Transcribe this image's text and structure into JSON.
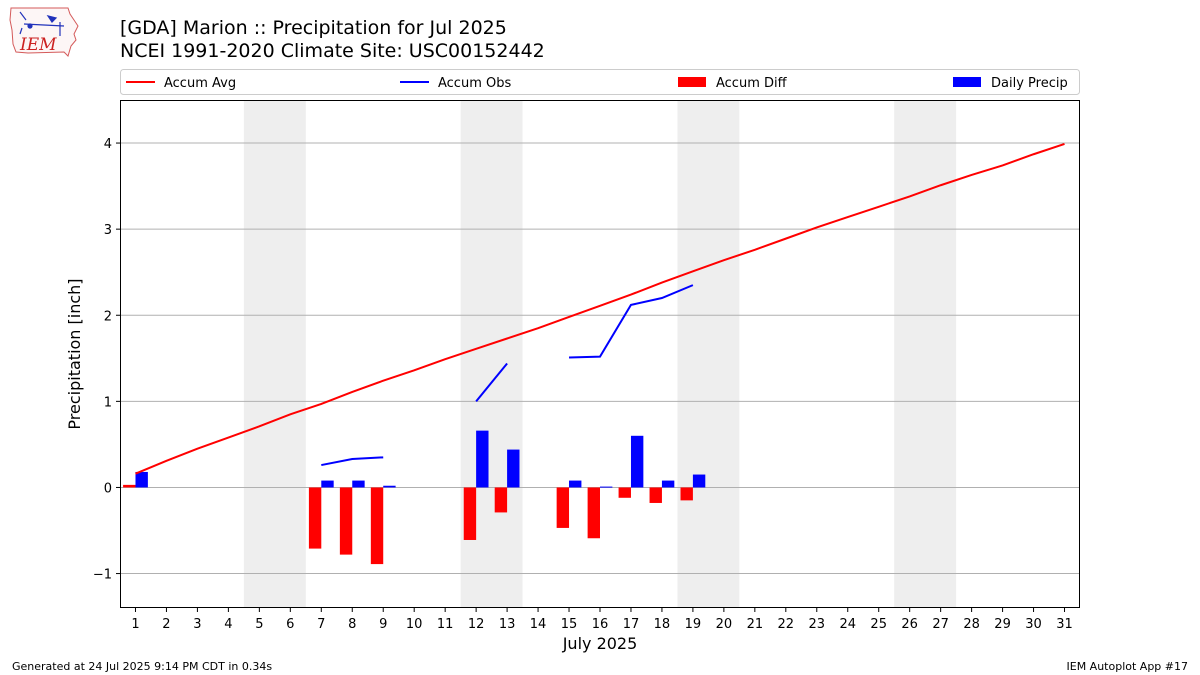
{
  "header": {
    "title_line1": "[GDA] Marion :: Precipitation for Jul 2025",
    "title_line2": "NCEI 1991-2020 Climate Site: USC00152442",
    "logo_text": "IEM"
  },
  "footer": {
    "left": "Generated at 24 Jul 2025 9:14 PM CDT in 0.34s",
    "right": "IEM Autoplot App #17"
  },
  "colors": {
    "accum_avg": "#ff0000",
    "accum_obs": "#0000ff",
    "accum_diff": "#ff0000",
    "daily_precip": "#0000ff",
    "weekend_shade": "#eeeeee",
    "grid": "#b0b0b0"
  },
  "chart_data": {
    "type": "bar",
    "title": "[GDA] Marion :: Precipitation for Jul 2025",
    "subtitle": "NCEI 1991-2020 Climate Site: USC00152442",
    "xlabel": "July 2025",
    "ylabel": "Precipitation [inch]",
    "xlim": [
      0.5,
      31.5
    ],
    "ylim": [
      -1.4,
      4.5
    ],
    "yticks": [
      -1,
      0,
      1,
      2,
      3,
      4
    ],
    "ytick_labels": [
      "−1",
      "0",
      "1",
      "2",
      "3",
      "4"
    ],
    "grid": "horizontal",
    "legend_position": "top",
    "days": [
      1,
      2,
      3,
      4,
      5,
      6,
      7,
      8,
      9,
      10,
      11,
      12,
      13,
      14,
      15,
      16,
      17,
      18,
      19,
      20,
      21,
      22,
      23,
      24,
      25,
      26,
      27,
      28,
      29,
      30,
      31
    ],
    "weekend_shading": [
      [
        5,
        6
      ],
      [
        12,
        13
      ],
      [
        19,
        20
      ],
      [
        26,
        27
      ]
    ],
    "series": [
      {
        "name": "Accum Avg",
        "type": "line",
        "color": "#ff0000",
        "x": [
          1,
          2,
          3,
          4,
          5,
          6,
          7,
          8,
          9,
          10,
          11,
          12,
          13,
          14,
          15,
          16,
          17,
          18,
          19,
          20,
          21,
          22,
          23,
          24,
          25,
          26,
          27,
          28,
          29,
          30,
          31
        ],
        "values": [
          0.16,
          0.31,
          0.45,
          0.58,
          0.71,
          0.85,
          0.97,
          1.11,
          1.24,
          1.36,
          1.49,
          1.61,
          1.73,
          1.85,
          1.98,
          2.11,
          2.24,
          2.38,
          2.51,
          2.64,
          2.76,
          2.89,
          3.02,
          3.14,
          3.26,
          3.38,
          3.51,
          3.63,
          3.74,
          3.87,
          3.99
        ]
      },
      {
        "name": "Accum Obs",
        "type": "line",
        "color": "#0000ff",
        "x": [
          7,
          8,
          9,
          12,
          13,
          15,
          16,
          17,
          18,
          19
        ],
        "values": [
          0.26,
          0.33,
          0.35,
          1.0,
          1.44,
          1.51,
          1.52,
          2.12,
          2.2,
          2.35
        ],
        "segments": [
          [
            7,
            8,
            9
          ],
          [
            12,
            13
          ],
          [
            15,
            16,
            17,
            18,
            19
          ]
        ]
      },
      {
        "name": "Accum Diff",
        "type": "bar",
        "color": "#ff0000",
        "x": [
          1,
          7,
          8,
          9,
          12,
          13,
          15,
          16,
          17,
          18,
          19
        ],
        "values": [
          0.03,
          -0.71,
          -0.78,
          -0.89,
          -0.61,
          -0.29,
          -0.47,
          -0.59,
          -0.12,
          -0.18,
          -0.15
        ]
      },
      {
        "name": "Daily Precip",
        "type": "bar",
        "color": "#0000ff",
        "x": [
          1,
          7,
          8,
          9,
          12,
          13,
          15,
          16,
          17,
          18,
          19
        ],
        "values": [
          0.18,
          0.08,
          0.08,
          0.02,
          0.66,
          0.44,
          0.08,
          0.01,
          0.6,
          0.08,
          0.15
        ]
      }
    ]
  }
}
